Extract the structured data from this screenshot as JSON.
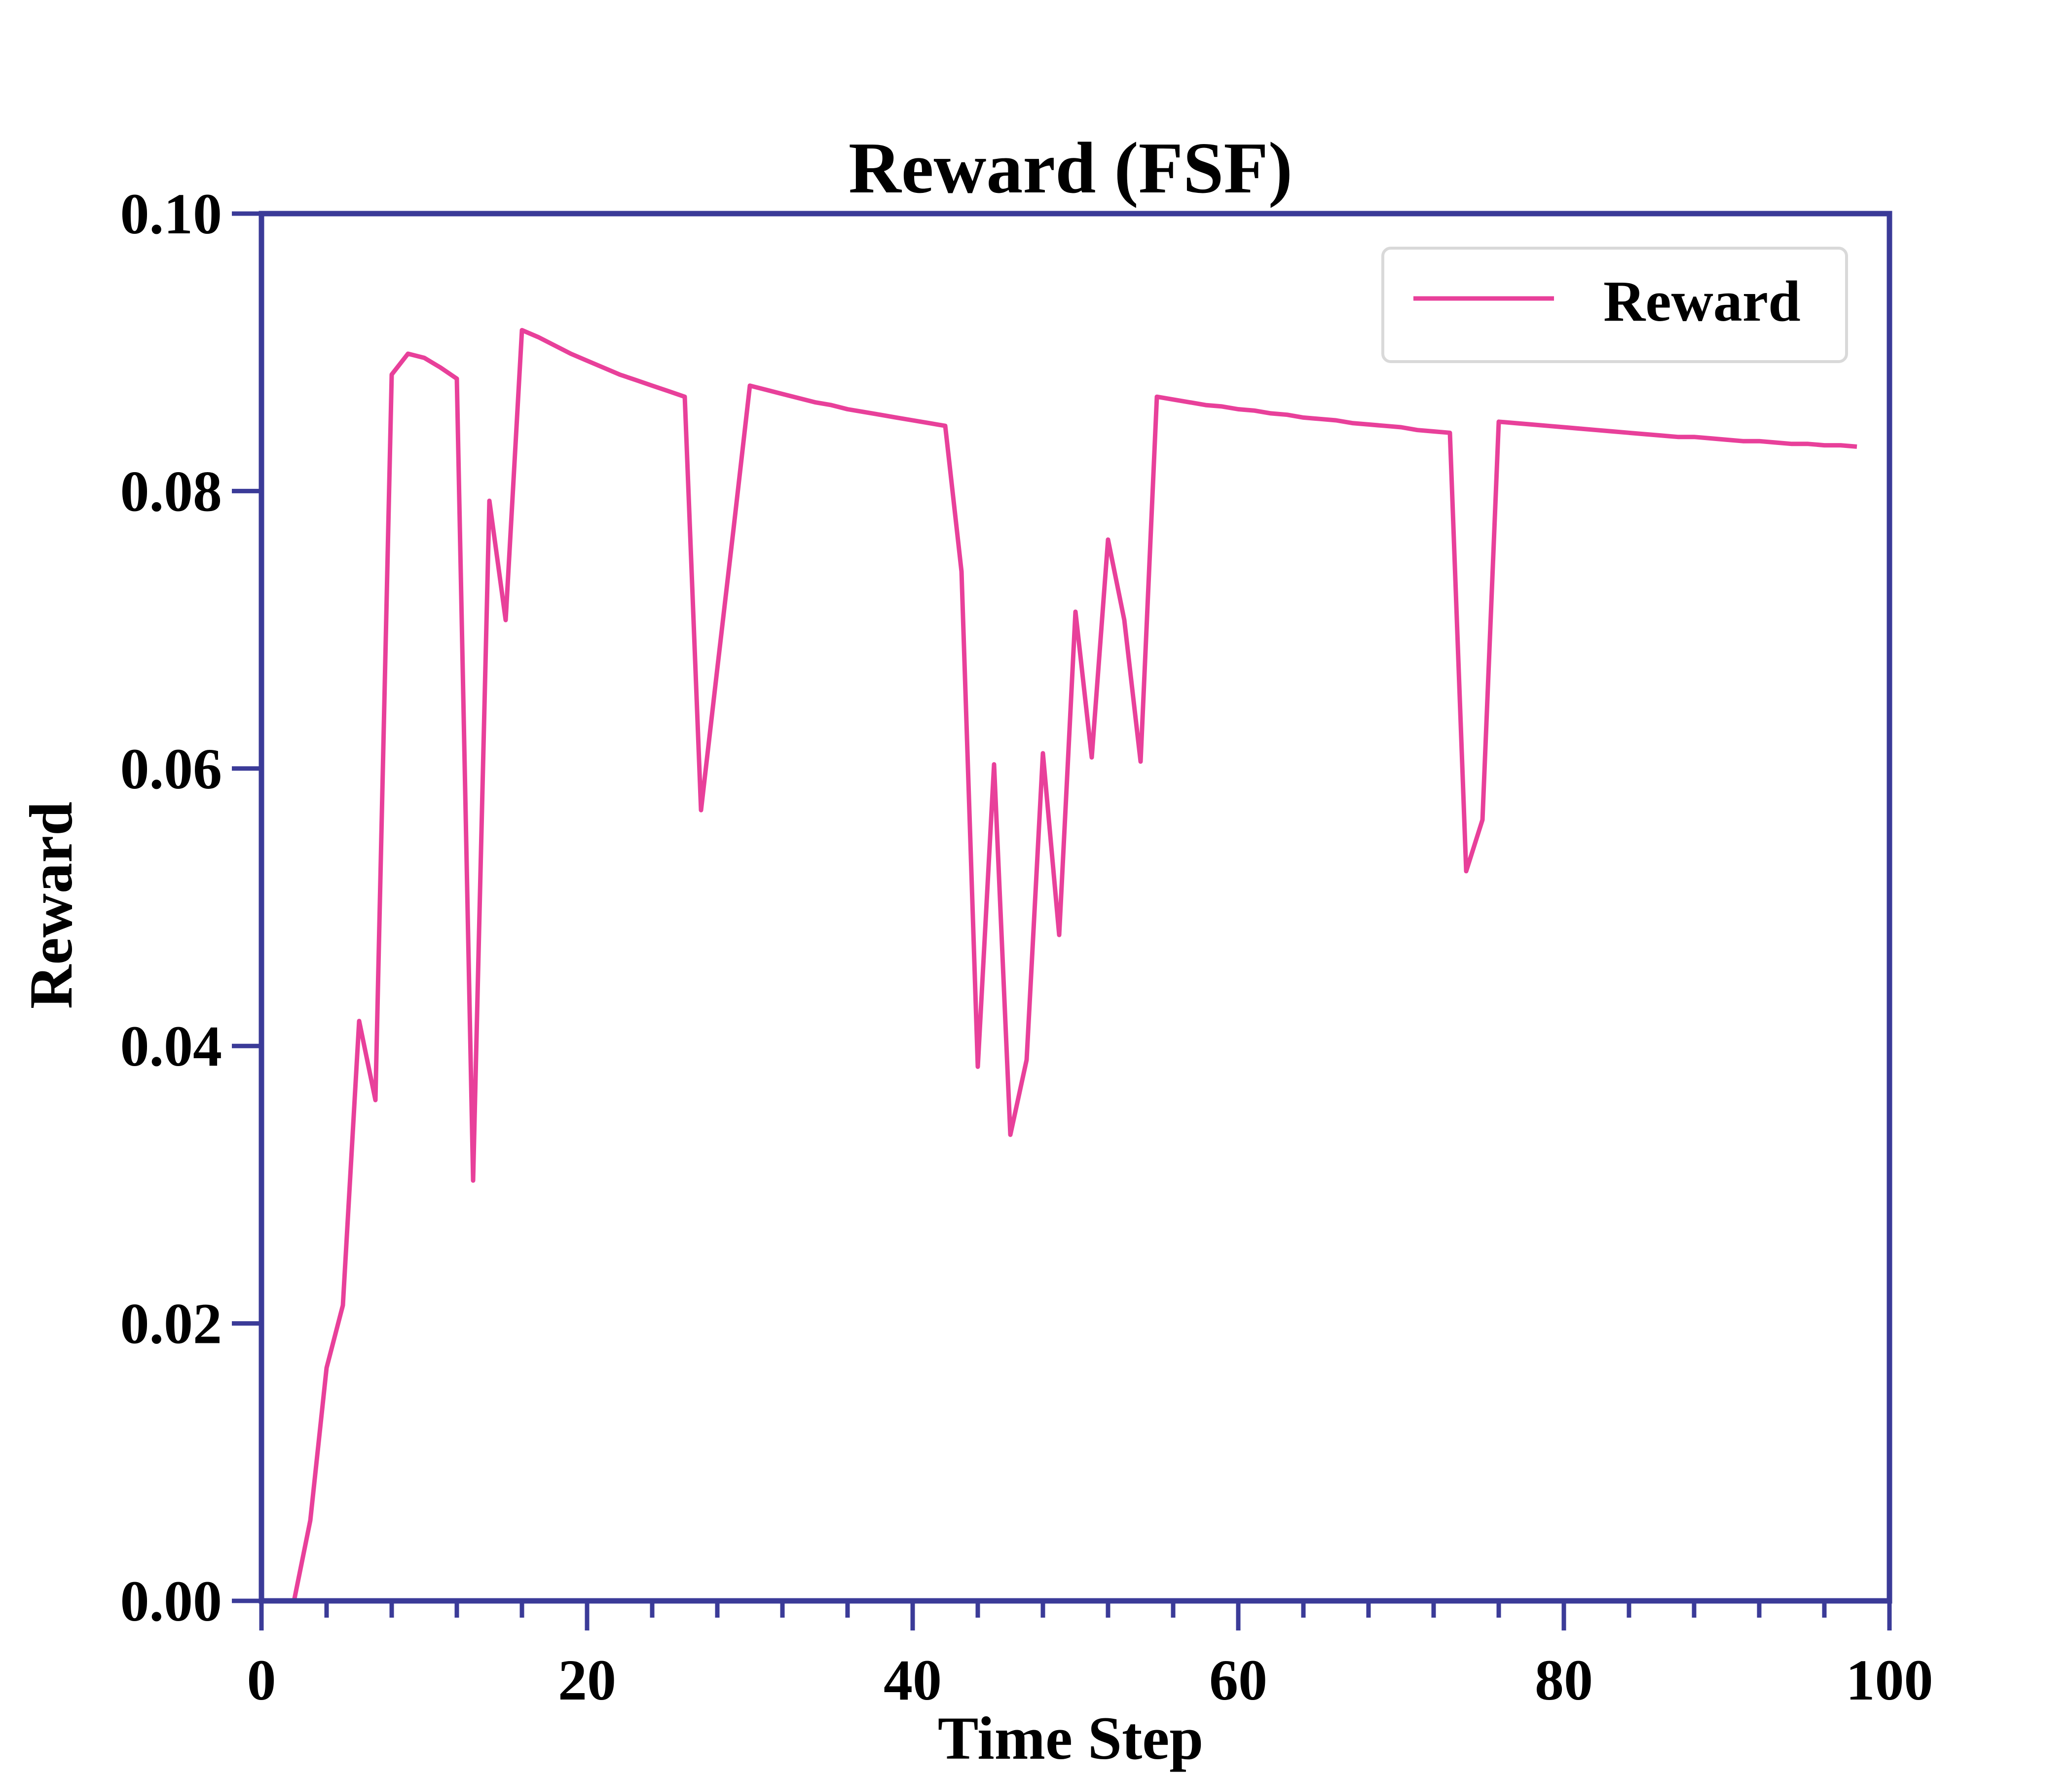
{
  "chart_data": {
    "type": "line",
    "title": "Reward (FSF)",
    "xlabel": "Time Step",
    "ylabel": "Reward",
    "xlim": [
      0,
      100
    ],
    "ylim": [
      0,
      0.1
    ],
    "x_ticks": [
      0,
      20,
      40,
      60,
      80,
      100
    ],
    "x_tick_labels": [
      "0",
      "20",
      "40",
      "60",
      "80",
      "100"
    ],
    "x_minor_step": 4,
    "y_ticks": [
      0,
      0.02,
      0.04,
      0.06,
      0.08,
      0.1
    ],
    "y_tick_labels": [
      "0.00",
      "0.02",
      "0.04",
      "0.06",
      "0.08",
      "0.10"
    ],
    "grid": false,
    "legend": {
      "position": "top-right",
      "entries": [
        "Reward"
      ]
    },
    "colors": {
      "axes": "#3b3b98",
      "line": "#e8409a",
      "legend_border": "#d9d9d9"
    },
    "series": [
      {
        "name": "Reward",
        "x": [
          2,
          3,
          4,
          5,
          6,
          7,
          8,
          9,
          10,
          11,
          12,
          13,
          14,
          15,
          16,
          17,
          18,
          19,
          20,
          21,
          22,
          23,
          24,
          25,
          26,
          27,
          28,
          29,
          30,
          31,
          32,
          33,
          34,
          35,
          36,
          37,
          38,
          39,
          40,
          41,
          42,
          43,
          44,
          45,
          46,
          47,
          48,
          49,
          50,
          51,
          52,
          53,
          54,
          55,
          56,
          57,
          58,
          59,
          60,
          61,
          62,
          63,
          64,
          65,
          66,
          67,
          68,
          69,
          70,
          71,
          72,
          73,
          74,
          75,
          76,
          77,
          78,
          79,
          80,
          81,
          82,
          83,
          84,
          85,
          86,
          87,
          88,
          89,
          90,
          91,
          92,
          93,
          94,
          95,
          96,
          97,
          98
        ],
        "values": [
          0.0,
          0.0058,
          0.0168,
          0.0213,
          0.0418,
          0.0361,
          0.0884,
          0.0899,
          0.0896,
          0.0889,
          0.0881,
          0.0303,
          0.0793,
          0.0707,
          0.0916,
          0.0911,
          0.0905,
          0.0899,
          0.0894,
          0.0889,
          0.0884,
          0.088,
          0.0876,
          0.0872,
          0.0868,
          0.057,
          0.0672,
          0.0773,
          0.0876,
          0.0873,
          0.087,
          0.0867,
          0.0864,
          0.0862,
          0.0859,
          0.0857,
          0.0855,
          0.0853,
          0.0851,
          0.0849,
          0.0847,
          0.0742,
          0.0385,
          0.0603,
          0.0336,
          0.039,
          0.0611,
          0.048,
          0.0713,
          0.0608,
          0.0765,
          0.0707,
          0.0605,
          0.0868,
          0.0866,
          0.0864,
          0.0862,
          0.0861,
          0.0859,
          0.0858,
          0.0856,
          0.0855,
          0.0853,
          0.0852,
          0.0851,
          0.0849,
          0.0848,
          0.0847,
          0.0846,
          0.0844,
          0.0843,
          0.0842,
          0.0526,
          0.0563,
          0.085,
          0.0849,
          0.0848,
          0.0847,
          0.0846,
          0.0845,
          0.0844,
          0.0843,
          0.0842,
          0.0841,
          0.084,
          0.0839,
          0.0839,
          0.0838,
          0.0837,
          0.0836,
          0.0836,
          0.0835,
          0.0834,
          0.0834,
          0.0833,
          0.0833,
          0.0832
        ]
      }
    ]
  }
}
